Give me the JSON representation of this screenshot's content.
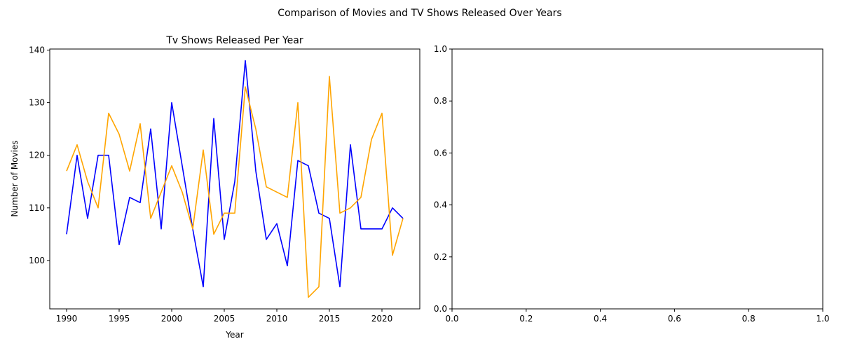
{
  "figure": {
    "suptitle": "Comparison of Movies and TV Shows Released Over Years"
  },
  "chart_data": [
    {
      "type": "line",
      "title": "Tv Shows Released Per Year",
      "xlabel": "Year",
      "ylabel": "Number of Movies",
      "xlim": [
        1988.4,
        2023.6
      ],
      "ylim": [
        90.8,
        140.2
      ],
      "xticks": [
        1990,
        1995,
        2000,
        2005,
        2010,
        2015,
        2020
      ],
      "yticks": [
        100,
        110,
        120,
        130,
        140
      ],
      "grid": false,
      "x": [
        1990,
        1991,
        1992,
        1993,
        1994,
        1995,
        1996,
        1997,
        1998,
        1999,
        2000,
        2001,
        2002,
        2003,
        2004,
        2005,
        2006,
        2007,
        2008,
        2009,
        2010,
        2011,
        2012,
        2013,
        2014,
        2015,
        2016,
        2017,
        2018,
        2019,
        2020,
        2021,
        2022
      ],
      "series": [
        {
          "color": "#0000ff",
          "values": [
            105,
            120,
            108,
            120,
            120,
            103,
            112,
            111,
            125,
            106,
            130,
            118,
            106,
            95,
            127,
            104,
            115,
            138,
            117,
            104,
            107,
            99,
            119,
            118,
            109,
            108,
            95,
            122,
            106,
            106,
            106,
            110,
            108
          ]
        },
        {
          "color": "#ffa500",
          "values": [
            117,
            122,
            115,
            110,
            128,
            124,
            117,
            126,
            108,
            113,
            118,
            113,
            106,
            121,
            105,
            109,
            109,
            133,
            125,
            114,
            113,
            112,
            130,
            93,
            95,
            135,
            109,
            110,
            112,
            123,
            128,
            101,
            108
          ]
        }
      ]
    },
    {
      "type": "line",
      "title": "",
      "xlabel": "",
      "ylabel": "",
      "xlim": [
        0,
        1
      ],
      "ylim": [
        0,
        1
      ],
      "xticks": [
        "0.0",
        "0.2",
        "0.4",
        "0.6",
        "0.8",
        "1.0"
      ],
      "yticks": [
        "0.0",
        "0.2",
        "0.4",
        "0.6",
        "0.8",
        "1.0"
      ],
      "grid": false,
      "series": []
    }
  ]
}
